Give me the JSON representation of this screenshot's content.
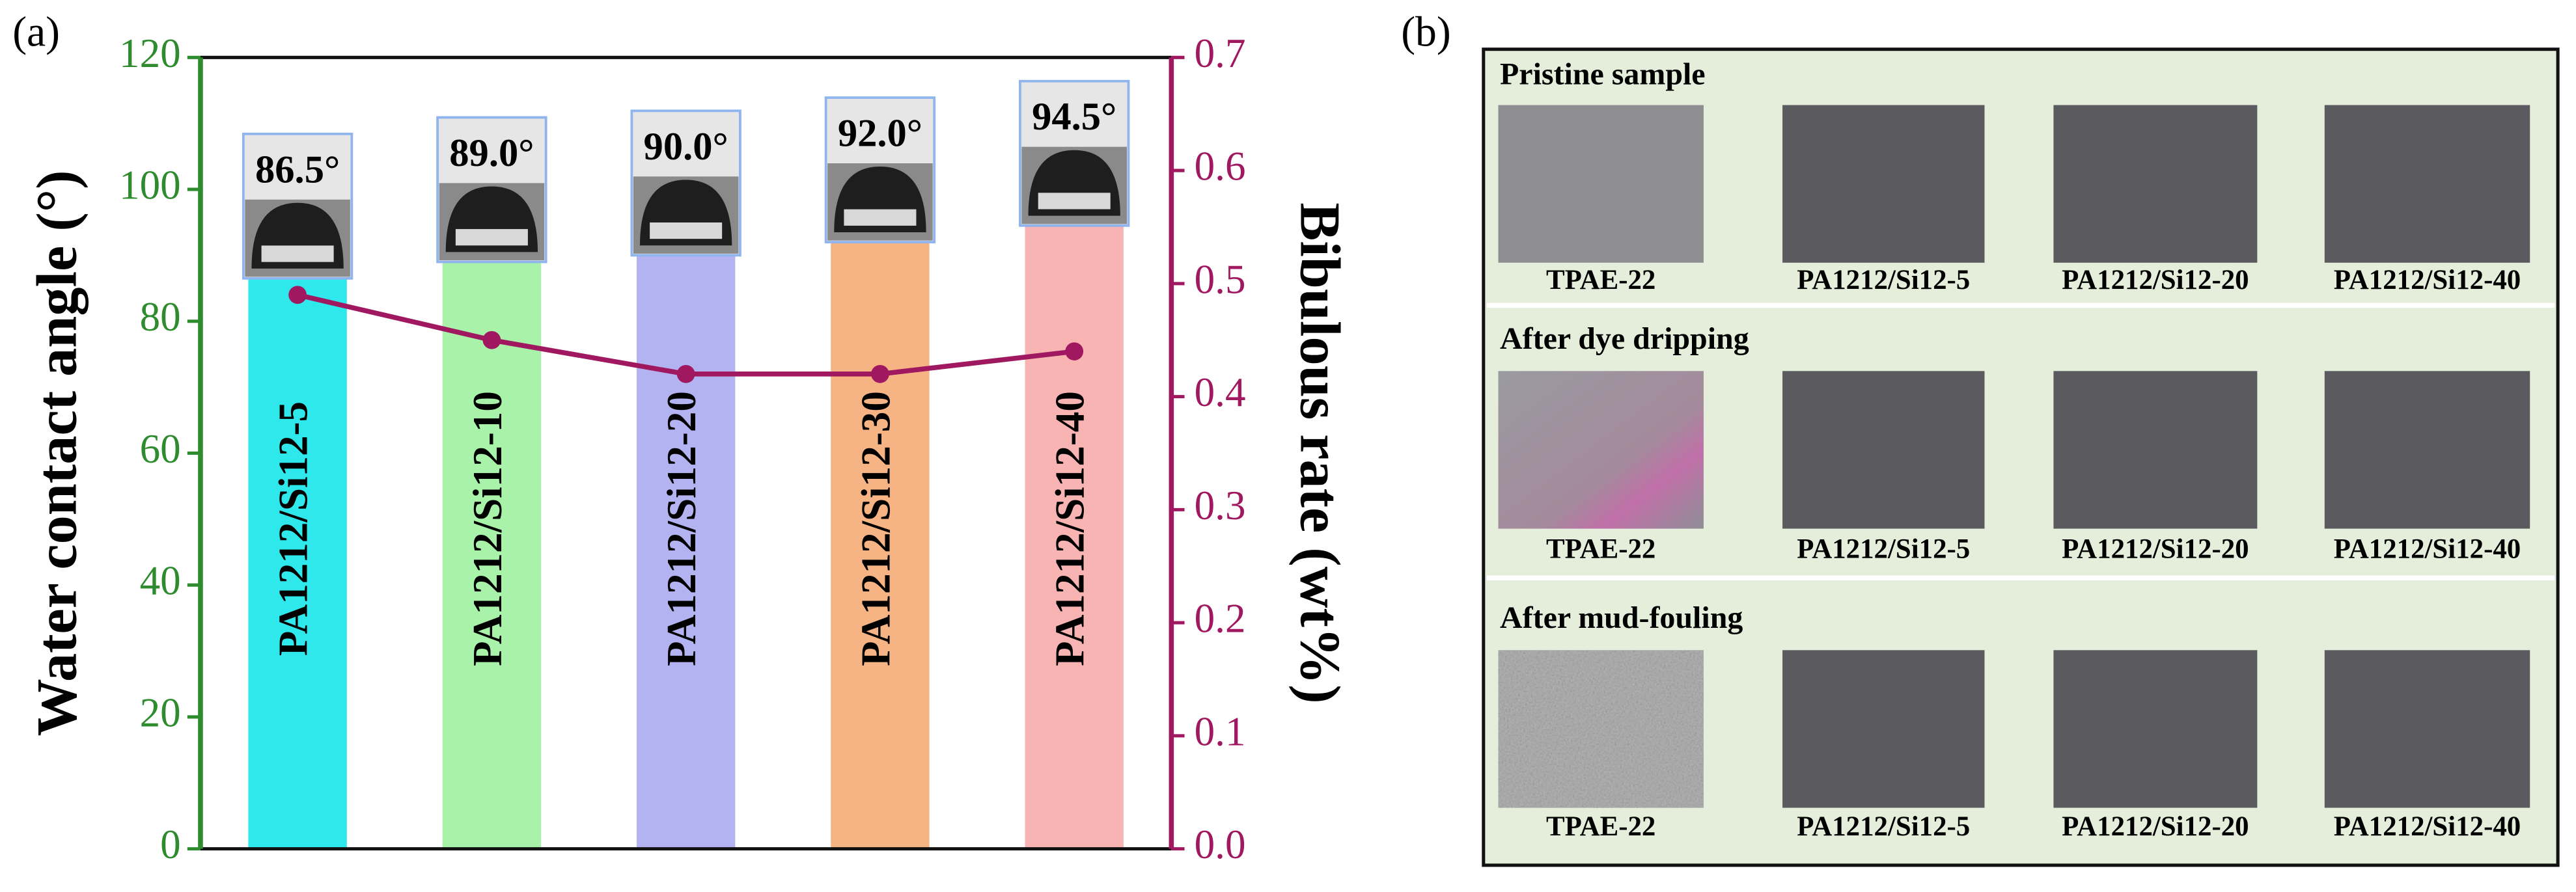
{
  "chart_data": {
    "type": "bar",
    "panel_label": "(a)",
    "y_label": "Water contact angle (°)",
    "y2_label": "Bibulous rate (wt%)",
    "categories": [
      "PA1212/Si12-5",
      "PA1212/Si12-10",
      "PA1212/Si12-20",
      "PA1212/Si12-30",
      "PA1212/Si12-40"
    ],
    "series": [
      {
        "type": "bar",
        "values": [
          86.5,
          89.0,
          90.0,
          92.0,
          94.5
        ],
        "value_labels": [
          "86.5°",
          "89.0°",
          "90.0°",
          "92.0°",
          "94.5°"
        ],
        "colors": [
          "#2ee8ec",
          "#a9f2a9",
          "#b3b3f2",
          "#f6b383",
          "#f8b3b3"
        ]
      },
      {
        "type": "line",
        "axis": "y2",
        "color": "#a01860",
        "values": [
          0.49,
          0.45,
          0.42,
          0.42,
          0.44
        ]
      }
    ],
    "ylim": [
      0,
      120
    ],
    "yticks": [
      0,
      20,
      40,
      60,
      80,
      100,
      120
    ],
    "y_color": "#2e8b2e",
    "y2lim": [
      0,
      0.7
    ],
    "y2ticks": [
      {
        "value": 0,
        "label": "0.0"
      },
      {
        "value": 0.1,
        "label": "0.1"
      },
      {
        "value": 0.2,
        "label": "0.2"
      },
      {
        "value": 0.3,
        "label": "0.3"
      },
      {
        "value": 0.4,
        "label": "0.4"
      },
      {
        "value": 0.5,
        "label": "0.5"
      },
      {
        "value": 0.6,
        "label": "0.6"
      },
      {
        "value": 0.7,
        "label": "0.7"
      }
    ],
    "y2_color": "#a01860",
    "grid": false
  },
  "panel_b": {
    "panel_label": "(b)",
    "sections": [
      {
        "title": "Pristine sample",
        "labels": [
          "TPAE-22",
          "PA1212/Si12-5",
          "PA1212/Si12-20",
          "PA1212/Si12-40"
        ]
      },
      {
        "title": "After dye dripping",
        "labels": [
          "TPAE-22",
          "PA1212/Si12-5",
          "PA1212/Si12-20",
          "PA1212/Si12-40"
        ]
      },
      {
        "title": "After mud-fouling",
        "labels": [
          "TPAE-22",
          "PA1212/Si12-5",
          "PA1212/Si12-20",
          "PA1212/Si12-40"
        ]
      }
    ]
  }
}
